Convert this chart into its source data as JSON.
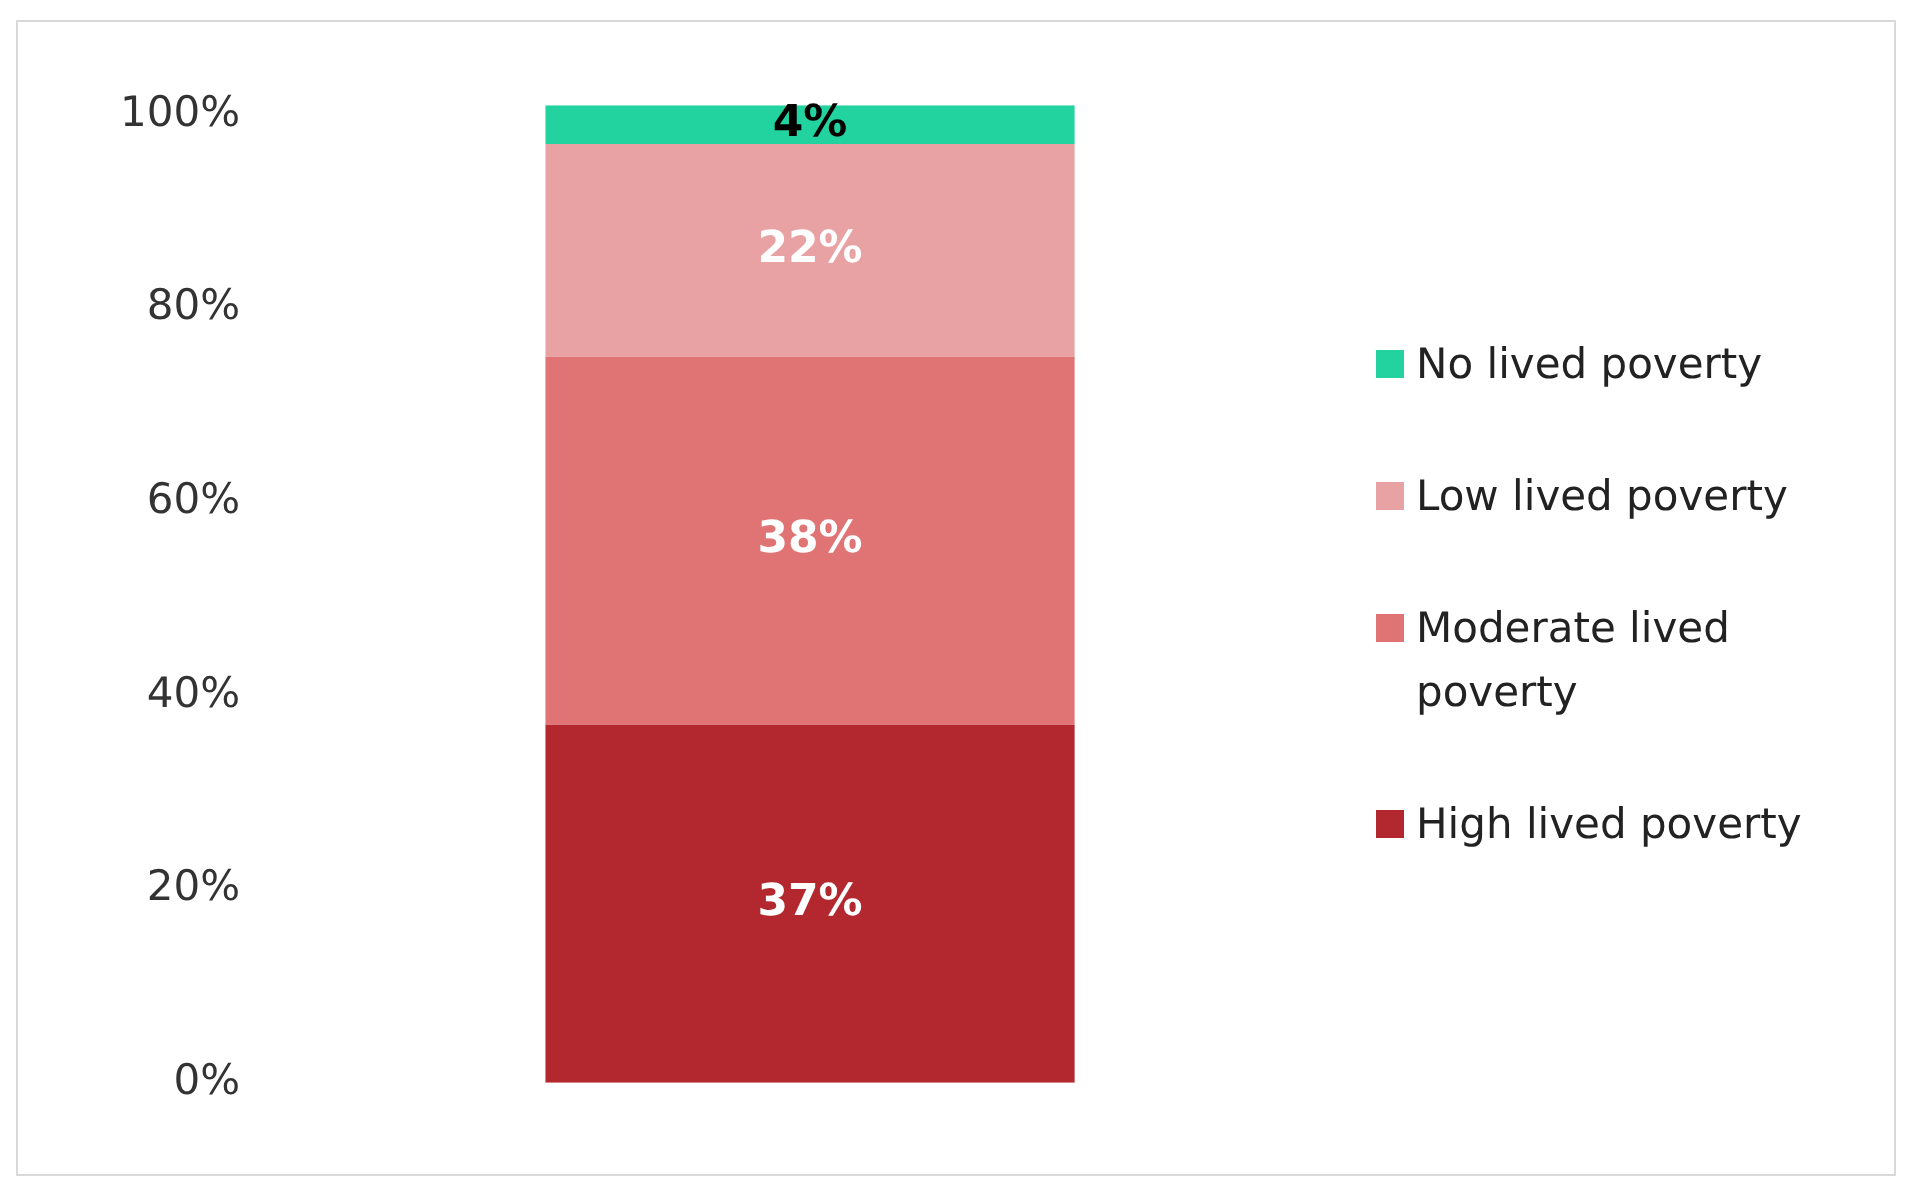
{
  "chart_data": {
    "type": "bar",
    "stacked": true,
    "categories": [
      null
    ],
    "series": [
      {
        "name": "High lived poverty",
        "color": "#b3282e",
        "values": [
          37
        ],
        "value_labels": [
          "37%"
        ]
      },
      {
        "name": "Moderate lived poverty",
        "color": "#e07373",
        "values": [
          38
        ],
        "value_labels": [
          "38%"
        ]
      },
      {
        "name": "Low lived poverty",
        "color": "#e9a2a3",
        "values": [
          22
        ],
        "value_labels": [
          "22%"
        ]
      },
      {
        "name": "No lived poverty",
        "color": "#22d3a0",
        "values": [
          4
        ],
        "value_labels": [
          "4%"
        ]
      }
    ],
    "ylim": [
      0,
      101
    ],
    "yticks": [
      {
        "value": 0,
        "label": "0%"
      },
      {
        "value": 20,
        "label": "20%"
      },
      {
        "value": 40,
        "label": "40%"
      },
      {
        "value": 60,
        "label": "60%"
      },
      {
        "value": 80,
        "label": "80%"
      },
      {
        "value": 100,
        "label": "100%"
      }
    ],
    "legend": "right"
  }
}
